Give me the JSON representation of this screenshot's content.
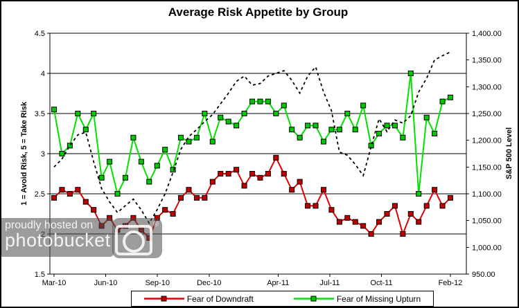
{
  "title": "Average Risk Appetite by Group",
  "left_axis": {
    "title": "1 = Avoid Risk, 5 = Take Risk",
    "tick_values": [
      4.5,
      4,
      3.5,
      3,
      2.5,
      2,
      1.5
    ],
    "tick_labels": [
      "4.5",
      "4",
      "3.5",
      "3",
      "2.5",
      "2",
      "1.5"
    ]
  },
  "right_axis": {
    "title": "S&P 500 Level",
    "tick_values": [
      1400,
      1350,
      1300,
      1250,
      1200,
      1150,
      1100,
      1050,
      1000,
      950
    ],
    "tick_labels": [
      "1,400.00",
      "1,350.00",
      "1,300.00",
      "1,250.00",
      "1,200.00",
      "1,150.00",
      "1,100.00",
      "1,050.00",
      "1,000.00",
      "950.00"
    ]
  },
  "legend": [
    {
      "label": "Fear of Downdraft",
      "line_color": "#e10000",
      "marker_color": "#c00000"
    },
    {
      "label": "Fear of Missing Upturn",
      "line_color": "#00e100",
      "marker_color": "#00c800"
    }
  ],
  "watermark": {
    "line1": "proudly hosted on",
    "line2": "photobucket",
    "registered": "®"
  },
  "chart_data": {
    "type": "line",
    "title": "Average Risk Appetite by Group",
    "x_tick_labels": [
      "Mar-10",
      "Jun-10",
      "Sep-10",
      "Dec-10",
      "Apr-11",
      "Jul-11",
      "Oct-11",
      "Feb-12"
    ],
    "x_tick_months": [
      0,
      3,
      6,
      9,
      13,
      16,
      19,
      23
    ],
    "x_total_months": 23,
    "left_axis_label": "1 = Avoid Risk, 5 = Take Risk",
    "right_axis_label": "S&P 500 Level",
    "left_ylim": [
      1.5,
      4.5
    ],
    "right_ylim": [
      950,
      1400
    ],
    "grid": "horizontal",
    "legend_position": "bottom",
    "series": [
      {
        "name": "Fear of Downdraft",
        "axis": "left",
        "style": "solid",
        "marker": "square",
        "line_color": "#e10000",
        "marker_color": "#c00000",
        "values": [
          2.45,
          2.55,
          2.5,
          2.55,
          2.4,
          2.3,
          2.1,
          2.2,
          2.05,
          2.1,
          2.2,
          2.05,
          1.95,
          2.2,
          2.3,
          2.25,
          2.45,
          2.55,
          2.45,
          2.45,
          2.65,
          2.75,
          2.75,
          2.8,
          2.6,
          2.75,
          2.7,
          2.75,
          2.95,
          2.75,
          2.55,
          2.65,
          2.35,
          2.35,
          2.55,
          2.3,
          2.15,
          2.2,
          2.15,
          2.1,
          2.0,
          2.15,
          2.25,
          2.35,
          2.0,
          2.25,
          2.15,
          2.35,
          2.55,
          2.35,
          2.45
        ]
      },
      {
        "name": "Fear of Missing Upturn",
        "axis": "left",
        "style": "solid",
        "marker": "square",
        "line_color": "#00e100",
        "marker_color": "#00c800",
        "values": [
          3.55,
          3.0,
          3.1,
          3.5,
          3.3,
          3.5,
          2.7,
          2.9,
          2.5,
          2.7,
          3.2,
          2.9,
          2.65,
          2.85,
          3.05,
          2.8,
          3.2,
          3.15,
          3.2,
          3.5,
          3.15,
          3.45,
          3.4,
          3.35,
          3.5,
          3.65,
          3.65,
          3.65,
          3.5,
          3.6,
          3.3,
          3.2,
          3.35,
          3.35,
          3.15,
          3.3,
          3.3,
          3.5,
          3.3,
          3.6,
          3.1,
          3.25,
          3.35,
          3.35,
          3.2,
          4.0,
          2.5,
          3.45,
          3.25,
          3.65,
          3.7
        ]
      },
      {
        "name": "S&P 500 (dashed, right axis, no legend entry)",
        "axis": "right",
        "style": "dashed",
        "marker": "none",
        "line_color": "#000000",
        "values": [
          1150,
          1165,
          1190,
          1210,
          1215,
          1160,
          1110,
          1085,
          1065,
          1078,
          1090,
          1070,
          1045,
          1070,
          1100,
          1140,
          1183,
          1207,
          1220,
          1235,
          1248,
          1268,
          1288,
          1310,
          1320,
          1303,
          1306,
          1320,
          1325,
          1330,
          1312,
          1288,
          1320,
          1337,
          1290,
          1255,
          1178,
          1172,
          1155,
          1134,
          1188,
          1240,
          1216,
          1238,
          1232,
          1246,
          1290,
          1316,
          1350,
          1358,
          1365
        ]
      }
    ]
  }
}
